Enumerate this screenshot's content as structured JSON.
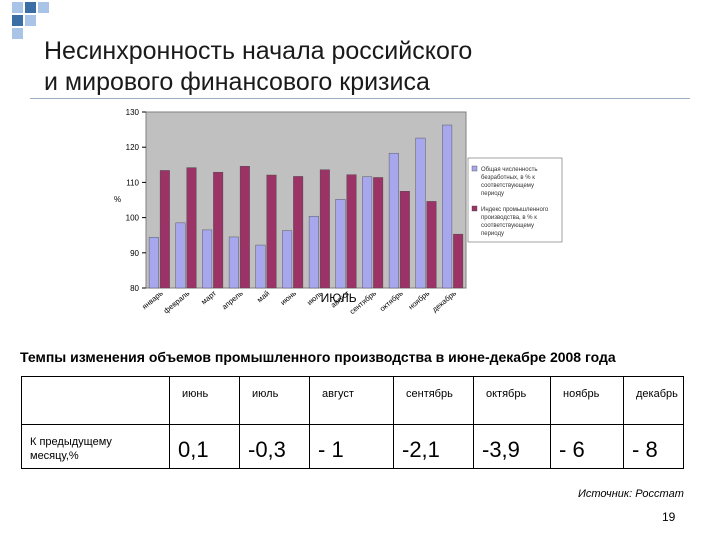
{
  "slide": {
    "title_line1": "Несинхронность начала российского",
    "title_line2": "и мирового финансового кризиса",
    "accent_color": "#3a6ea5",
    "light_color": "#a9c4e6"
  },
  "chart_data": {
    "type": "bar",
    "ylabel": "%",
    "ylim": [
      80,
      130
    ],
    "yticks": [
      80,
      90,
      100,
      110,
      120,
      130
    ],
    "grid": false,
    "legend_position": "right",
    "categories": [
      "январь",
      "февраль",
      "март",
      "апрель",
      "май",
      "июнь",
      "июль",
      "август",
      "сентябрь",
      "октябрь",
      "ноябрь",
      "декабрь"
    ],
    "annotation": "ИЮЛЬ",
    "series": [
      {
        "name": "Общая численность безработных, в % к соответствующему периоду",
        "color": "#a7a7ee",
        "values": [
          94.4,
          98.5,
          96.5,
          94.5,
          92.2,
          96.3,
          100.4,
          105.2,
          111.6,
          118.3,
          122.6,
          126.3
        ]
      },
      {
        "name": "Индекс промышленного производства, в % к соответствующему периоду",
        "color": "#9b3366",
        "values": [
          113.4,
          114.2,
          112.9,
          114.6,
          112.1,
          111.7,
          113.6,
          112.2,
          111.4,
          107.5,
          104.6,
          95.3
        ]
      }
    ]
  },
  "table": {
    "subtitle": "Темпы изменения объемов промышленного производства в июне-декабре 2008 года",
    "row_label": "К предыдущему месяцу,%",
    "columns": [
      {
        "header": "июнь",
        "value": "0,1"
      },
      {
        "header": "июль",
        "value": "-0,3"
      },
      {
        "header": "август",
        "value": "- 1"
      },
      {
        "header": "сентябрь",
        "value": "-2,1"
      },
      {
        "header": "октябрь",
        "value": "-3,9"
      },
      {
        "header": "ноябрь",
        "value": "- 6"
      },
      {
        "header": "декабрь",
        "value": "- 8"
      }
    ]
  },
  "footer": {
    "source": "Источник: Росстат",
    "page_number": "19"
  }
}
